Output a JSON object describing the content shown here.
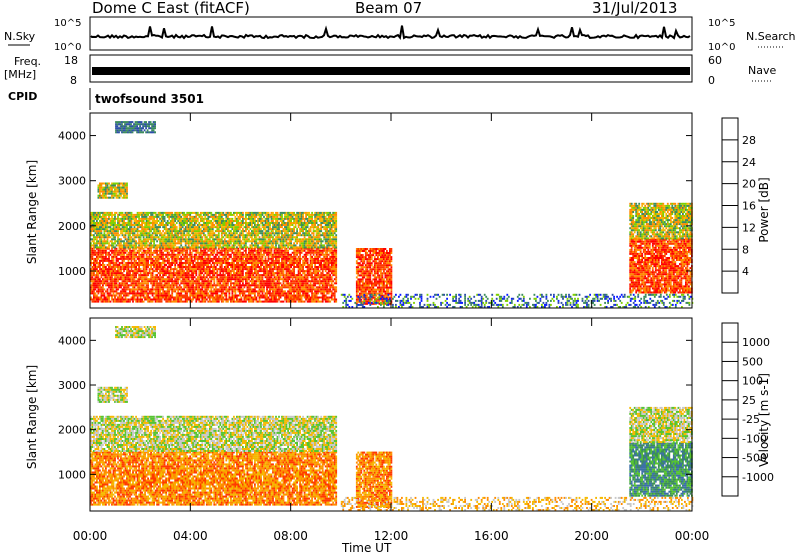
{
  "header": {
    "title": "Dome C East (fitACF)",
    "beam": "Beam 07",
    "date": "31/Jul/2013"
  },
  "aux_panels": {
    "nsky_label": "N.Sky",
    "nsky_ticks": [
      "10^5",
      "10^0"
    ],
    "nsearch_label": "N.Search",
    "nsearch_ticks": [
      "10^5",
      "10^0"
    ],
    "freq_label": "Freq.",
    "freq_unit": "[MHz]",
    "freq_ticks": [
      "18",
      "8"
    ],
    "nave_label": "Nave",
    "nave_ticks": [
      "60",
      "0"
    ],
    "cpid_label": "CPID",
    "cpid_value": "twofsound 3501"
  },
  "chart_data": [
    {
      "type": "heatmap",
      "name": "power",
      "ylabel": "Slant Range [km]",
      "xlabel": "Time UT",
      "ylim": [
        180,
        4500
      ],
      "xlim": [
        0,
        24
      ],
      "yticks": [
        1000,
        2000,
        3000,
        4000
      ],
      "xticks": [
        "00:00",
        "04:00",
        "08:00",
        "12:00",
        "16:00",
        "20:00",
        "00:00"
      ],
      "colorbar": {
        "label": "Power [dB]",
        "ticks": [
          "28",
          "24",
          "20",
          "16",
          "12",
          "8",
          "4"
        ],
        "colors": [
          "#ff0000",
          "#ff3a00",
          "#ff8c00",
          "#f5b800",
          "#7fd000",
          "#3c8c5c",
          "#2d4fa8",
          "#0a1cff"
        ]
      },
      "regions": [
        {
          "t0": 0.0,
          "t1": 9.8,
          "r0": 300,
          "r1": 1500,
          "level": "high"
        },
        {
          "t0": 0.0,
          "t1": 9.8,
          "r0": 1500,
          "r1": 2300,
          "level": "mid"
        },
        {
          "t0": 0.3,
          "t1": 1.5,
          "r0": 2600,
          "r1": 2950,
          "level": "mid"
        },
        {
          "t0": 1.0,
          "t1": 2.6,
          "r0": 4050,
          "r1": 4300,
          "level": "low"
        },
        {
          "t0": 10.6,
          "t1": 12.0,
          "r0": 250,
          "r1": 1500,
          "level": "high"
        },
        {
          "t0": 21.5,
          "t1": 24.0,
          "r0": 500,
          "r1": 1700,
          "level": "high"
        },
        {
          "t0": 21.5,
          "t1": 24.0,
          "r0": 1700,
          "r1": 2500,
          "level": "mid"
        },
        {
          "t0": 10.0,
          "t1": 24.0,
          "r0": 180,
          "r1": 480,
          "level": "sparse"
        }
      ]
    },
    {
      "type": "heatmap",
      "name": "velocity",
      "ylabel": "Slant Range [km]",
      "xlabel": "Time UT",
      "ylim": [
        180,
        4500
      ],
      "xlim": [
        0,
        24
      ],
      "yticks": [
        1000,
        2000,
        3000,
        4000
      ],
      "xticks": [
        "00:00",
        "04:00",
        "08:00",
        "12:00",
        "16:00",
        "20:00",
        "00:00"
      ],
      "colorbar": {
        "label": "Velocity [m s-1]",
        "ticks": [
          "1000",
          "500",
          "100",
          "25",
          "-25",
          "-100",
          "-500",
          "-1000"
        ],
        "colors": [
          "#2d4fa8",
          "#3c70a8",
          "#3c8c5c",
          "#56c430",
          "#c8c8c8",
          "#f5b800",
          "#ff8c00",
          "#ff3a00",
          "#ff0000"
        ]
      },
      "regions": [
        {
          "t0": 0.0,
          "t1": 9.8,
          "r0": 300,
          "r1": 1500,
          "level": "negative"
        },
        {
          "t0": 0.0,
          "t1": 9.8,
          "r0": 1500,
          "r1": 2300,
          "level": "near-zero"
        },
        {
          "t0": 0.3,
          "t1": 1.5,
          "r0": 2600,
          "r1": 2950,
          "level": "near-zero"
        },
        {
          "t0": 1.0,
          "t1": 2.6,
          "r0": 4050,
          "r1": 4300,
          "level": "near-zero"
        },
        {
          "t0": 10.6,
          "t1": 12.0,
          "r0": 250,
          "r1": 1500,
          "level": "negative"
        },
        {
          "t0": 21.5,
          "t1": 24.0,
          "r0": 500,
          "r1": 1700,
          "level": "positive"
        },
        {
          "t0": 21.5,
          "t1": 24.0,
          "r0": 1700,
          "r1": 2500,
          "level": "near-zero"
        },
        {
          "t0": 10.0,
          "t1": 24.0,
          "r0": 180,
          "r1": 480,
          "level": "sparse"
        }
      ]
    }
  ]
}
